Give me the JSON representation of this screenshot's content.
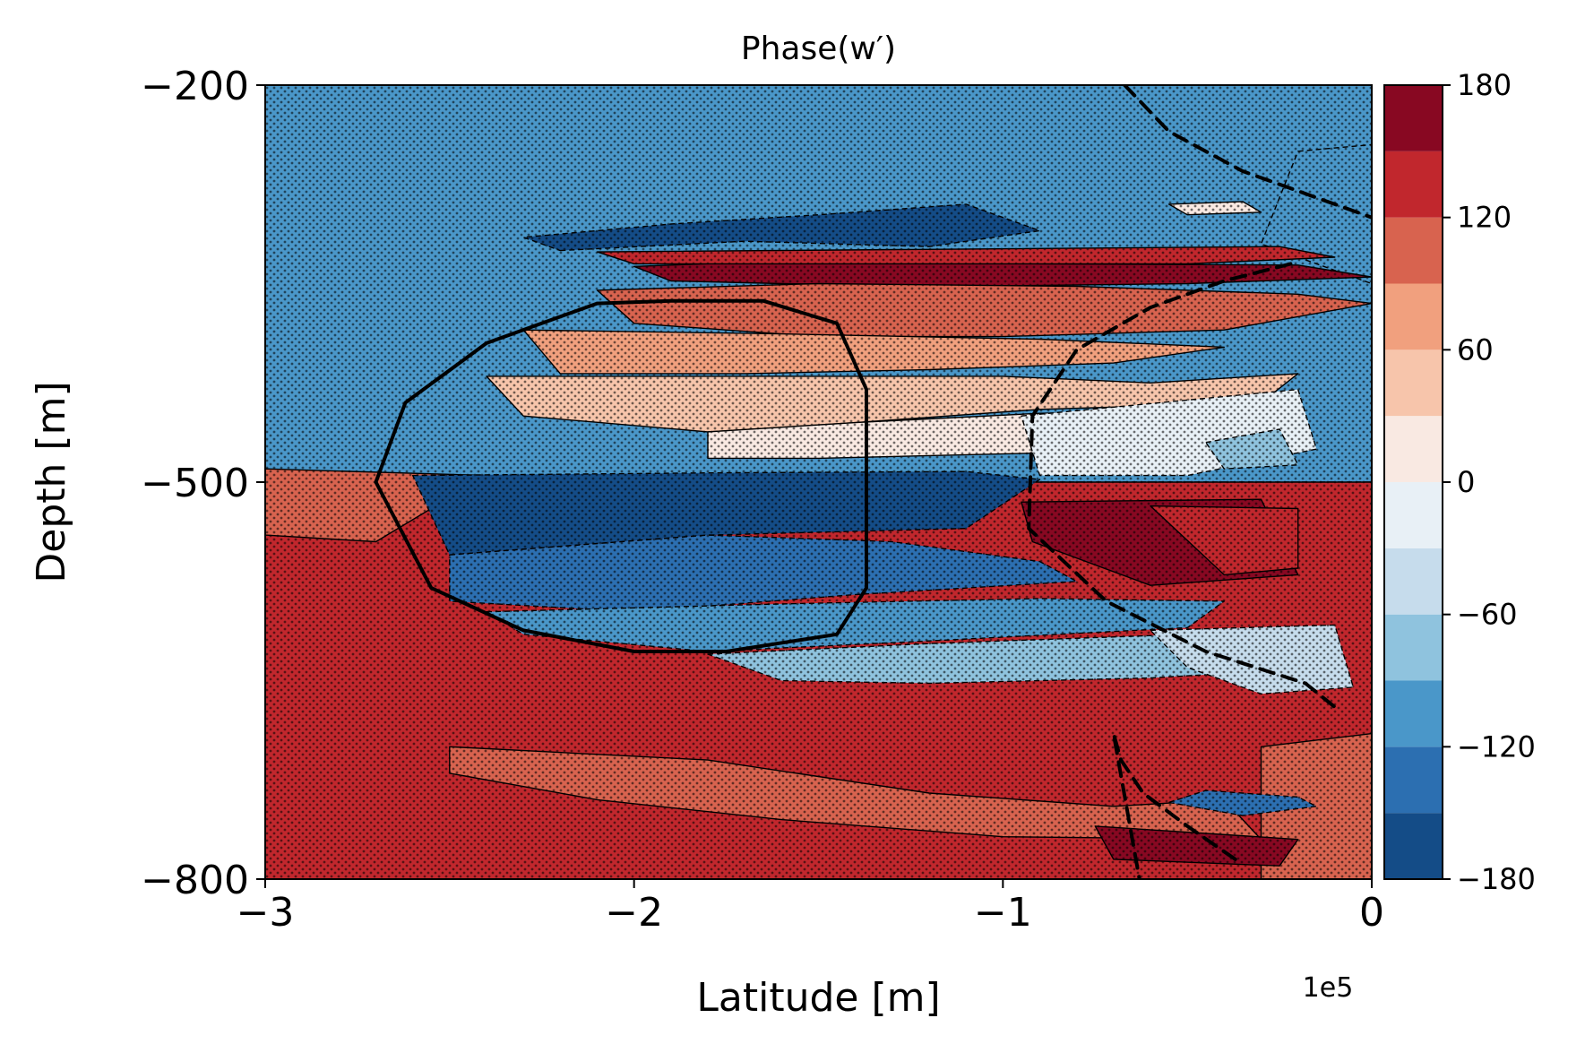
{
  "chart_data": {
    "type": "heatmap",
    "title": "Phase(w′)",
    "xlabel": "Latitude [m]",
    "ylabel": "Depth [m]",
    "x_offset_label": "1e5",
    "xlim": [
      -3,
      0
    ],
    "ylim": [
      -800,
      -200
    ],
    "x_ticks": [
      -3,
      -2,
      -1,
      0
    ],
    "x_tick_labels": [
      "−3",
      "−2",
      "−1",
      "0"
    ],
    "y_ticks": [
      -200,
      -500,
      -800
    ],
    "y_tick_labels": [
      "−200",
      "−500",
      "−800"
    ],
    "colorbar": {
      "range": [
        -180,
        180
      ],
      "levels": [
        -180,
        -150,
        -120,
        -90,
        -60,
        -30,
        0,
        30,
        60,
        90,
        120,
        150,
        180
      ],
      "colors": [
        "#144c87",
        "#2c6fb1",
        "#4a97c9",
        "#8fc3de",
        "#c6dcec",
        "#e8f0f6",
        "#f9e9e2",
        "#f7c5ab",
        "#f1a07e",
        "#d8634f",
        "#c1272d",
        "#880822"
      ],
      "ticks": [
        -180,
        -120,
        -60,
        0,
        60,
        120,
        180
      ],
      "tick_labels": [
        "−180",
        "−120",
        "−60",
        "0",
        "60",
        "120",
        "180"
      ]
    },
    "regions": [
      {
        "phase": -100,
        "points": [
          [
            -3,
            -200
          ],
          [
            0,
            -200
          ],
          [
            0,
            -500
          ],
          [
            -3,
            -500
          ]
        ]
      },
      {
        "phase": 140,
        "points": [
          [
            -3,
            -500
          ],
          [
            0,
            -500
          ],
          [
            0,
            -800
          ],
          [
            -3,
            -800
          ]
        ]
      },
      {
        "phase": -150,
        "points": [
          [
            -2.2,
            -325
          ],
          [
            -1.7,
            -318
          ],
          [
            -1.2,
            -322
          ],
          [
            -0.9,
            -310
          ],
          [
            -1.1,
            -290
          ],
          [
            -1.5,
            -298
          ],
          [
            -1.9,
            -305
          ],
          [
            -2.3,
            -315
          ]
        ]
      },
      {
        "phase": -110,
        "points": [
          [
            -0.2,
            -250
          ],
          [
            0,
            -245
          ],
          [
            0,
            -350
          ],
          [
            -0.3,
            -320
          ]
        ]
      },
      {
        "phase": 105,
        "points": [
          [
            -3,
            -490
          ],
          [
            -2.4,
            -495
          ],
          [
            -2.7,
            -545
          ],
          [
            -3,
            -540
          ]
        ]
      },
      {
        "phase": 105,
        "points": [
          [
            -0.3,
            -700
          ],
          [
            0,
            -690
          ],
          [
            0,
            -800
          ],
          [
            -0.3,
            -800
          ]
        ]
      },
      {
        "phase": 100,
        "points": [
          [
            -2.5,
            -700
          ],
          [
            -1.8,
            -710
          ],
          [
            -1.2,
            -735
          ],
          [
            -0.7,
            -745
          ],
          [
            -0.4,
            -740
          ],
          [
            -0.3,
            -770
          ],
          [
            -1.0,
            -768
          ],
          [
            -1.6,
            -755
          ],
          [
            -2.1,
            -740
          ],
          [
            -2.5,
            -720
          ]
        ]
      },
      {
        "phase": -140,
        "points": [
          [
            -0.55,
            -742
          ],
          [
            -0.45,
            -733
          ],
          [
            -0.2,
            -738
          ],
          [
            -0.15,
            -745
          ],
          [
            -0.35,
            -752
          ]
        ]
      },
      {
        "phase": 170,
        "points": [
          [
            -0.75,
            -760
          ],
          [
            -0.2,
            -770
          ],
          [
            -0.25,
            -790
          ],
          [
            -0.7,
            -785
          ]
        ]
      },
      {
        "phase": 10,
        "points": [
          [
            -0.55,
            -290
          ],
          [
            -0.35,
            -288
          ],
          [
            -0.3,
            -296
          ],
          [
            -0.5,
            -298
          ]
        ]
      },
      {
        "phase": 160,
        "points": [
          [
            -2.0,
            -337
          ],
          [
            -1.5,
            -332
          ],
          [
            -0.9,
            -335
          ],
          [
            -0.2,
            -336
          ],
          [
            0,
            -345
          ],
          [
            -0.5,
            -350
          ],
          [
            -1.1,
            -352
          ],
          [
            -1.6,
            -350
          ],
          [
            -1.9,
            -348
          ]
        ]
      },
      {
        "phase": 110,
        "points": [
          [
            -2.1,
            -355
          ],
          [
            -1.5,
            -350
          ],
          [
            -0.8,
            -352
          ],
          [
            -0.2,
            -358
          ],
          [
            0,
            -365
          ],
          [
            -0.4,
            -385
          ],
          [
            -1.0,
            -390
          ],
          [
            -1.5,
            -390
          ],
          [
            -2.0,
            -380
          ]
        ]
      },
      {
        "phase": 80,
        "points": [
          [
            -2.3,
            -385
          ],
          [
            -1.6,
            -388
          ],
          [
            -0.9,
            -392
          ],
          [
            -0.4,
            -398
          ],
          [
            -0.7,
            -410
          ],
          [
            -1.2,
            -415
          ],
          [
            -1.7,
            -418
          ],
          [
            -2.2,
            -418
          ]
        ]
      },
      {
        "phase": 40,
        "points": [
          [
            -2.4,
            -420
          ],
          [
            -1.6,
            -420
          ],
          [
            -1.0,
            -420
          ],
          [
            -0.6,
            -425
          ],
          [
            -0.2,
            -418
          ],
          [
            -0.3,
            -440
          ],
          [
            -0.9,
            -445
          ],
          [
            -1.4,
            -455
          ],
          [
            -1.8,
            -462
          ],
          [
            -2.3,
            -450
          ]
        ]
      },
      {
        "phase": 10,
        "points": [
          [
            -1.8,
            -462
          ],
          [
            -1.4,
            -455
          ],
          [
            -0.9,
            -448
          ],
          [
            -0.3,
            -445
          ],
          [
            -0.2,
            -470
          ],
          [
            -0.9,
            -478
          ],
          [
            -1.5,
            -482
          ],
          [
            -1.8,
            -482
          ]
        ]
      },
      {
        "phase": -20,
        "points": [
          [
            -0.95,
            -450
          ],
          [
            -0.2,
            -430
          ],
          [
            -0.15,
            -475
          ],
          [
            -0.5,
            -495
          ],
          [
            -0.9,
            -495
          ]
        ]
      },
      {
        "phase": -60,
        "points": [
          [
            -0.45,
            -470
          ],
          [
            -0.25,
            -460
          ],
          [
            -0.2,
            -487
          ],
          [
            -0.4,
            -490
          ]
        ]
      },
      {
        "phase": -160,
        "points": [
          [
            -2.6,
            -495
          ],
          [
            -1.8,
            -493
          ],
          [
            -1.1,
            -492
          ],
          [
            -0.9,
            -498
          ],
          [
            -1.1,
            -535
          ],
          [
            -1.8,
            -540
          ],
          [
            -2.5,
            -555
          ]
        ]
      },
      {
        "phase": -130,
        "points": [
          [
            -2.5,
            -555
          ],
          [
            -1.8,
            -540
          ],
          [
            -1.3,
            -545
          ],
          [
            -0.9,
            -560
          ],
          [
            -0.8,
            -575
          ],
          [
            -1.4,
            -585
          ],
          [
            -2.0,
            -598
          ],
          [
            -2.5,
            -590
          ]
        ]
      },
      {
        "phase": -100,
        "points": [
          [
            -2.4,
            -598
          ],
          [
            -1.6,
            -592
          ],
          [
            -0.9,
            -588
          ],
          [
            -0.4,
            -590
          ],
          [
            -0.5,
            -610
          ],
          [
            -1.2,
            -620
          ],
          [
            -1.8,
            -628
          ],
          [
            -2.3,
            -615
          ]
        ]
      },
      {
        "phase": -70,
        "points": [
          [
            -1.8,
            -630
          ],
          [
            -1.2,
            -622
          ],
          [
            -0.5,
            -615
          ],
          [
            -0.1,
            -620
          ],
          [
            -0.1,
            -640
          ],
          [
            -0.6,
            -648
          ],
          [
            -1.2,
            -652
          ],
          [
            -1.6,
            -650
          ]
        ]
      },
      {
        "phase": -40,
        "points": [
          [
            -0.6,
            -612
          ],
          [
            -0.1,
            -608
          ],
          [
            -0.05,
            -655
          ],
          [
            -0.3,
            -660
          ],
          [
            -0.5,
            -640
          ]
        ]
      },
      {
        "phase": 170,
        "points": [
          [
            -0.95,
            -515
          ],
          [
            -0.3,
            -513
          ],
          [
            -0.2,
            -570
          ],
          [
            -0.6,
            -578
          ],
          [
            -0.92,
            -545
          ]
        ]
      },
      {
        "phase": 140,
        "points": [
          [
            -0.6,
            -518
          ],
          [
            -0.2,
            -520
          ],
          [
            -0.2,
            -565
          ],
          [
            -0.4,
            -570
          ]
        ]
      },
      {
        "phase": 150,
        "points": [
          [
            -2.1,
            -326
          ],
          [
            -0.25,
            -322
          ],
          [
            -0.1,
            -330
          ],
          [
            -0.5,
            -335
          ],
          [
            -2.0,
            -335
          ]
        ]
      }
    ],
    "annotations": [
      {
        "type": "solid-contour",
        "points": [
          [
            -1.9,
            -363
          ],
          [
            -1.65,
            -363
          ],
          [
            -1.45,
            -380
          ],
          [
            -1.37,
            -430
          ],
          [
            -1.37,
            -580
          ],
          [
            -1.45,
            -615
          ],
          [
            -1.75,
            -628
          ],
          [
            -2.0,
            -628
          ],
          [
            -2.3,
            -612
          ],
          [
            -2.55,
            -580
          ],
          [
            -2.7,
            -500
          ],
          [
            -2.62,
            -440
          ],
          [
            -2.4,
            -395
          ],
          [
            -2.1,
            -365
          ]
        ]
      },
      {
        "type": "dashed-contour",
        "points": [
          [
            -0.67,
            -200
          ],
          [
            -0.55,
            -235
          ],
          [
            -0.35,
            -265
          ],
          [
            -0.1,
            -290
          ],
          [
            0,
            -300
          ]
        ]
      },
      {
        "type": "dashed-contour",
        "points": [
          [
            -0.22,
            -335
          ],
          [
            -0.4,
            -348
          ],
          [
            -0.6,
            -368
          ],
          [
            -0.8,
            -400
          ],
          [
            -0.92,
            -450
          ],
          [
            -0.93,
            -535
          ],
          [
            -0.72,
            -590
          ],
          [
            -0.45,
            -628
          ],
          [
            -0.18,
            -652
          ],
          [
            -0.1,
            -670
          ]
        ]
      },
      {
        "type": "dashed-contour",
        "points": [
          [
            -0.37,
            -785
          ],
          [
            -0.5,
            -760
          ],
          [
            -0.62,
            -735
          ],
          [
            -0.68,
            -710
          ],
          [
            -0.7,
            -690
          ],
          [
            -0.63,
            -800
          ]
        ]
      }
    ]
  }
}
